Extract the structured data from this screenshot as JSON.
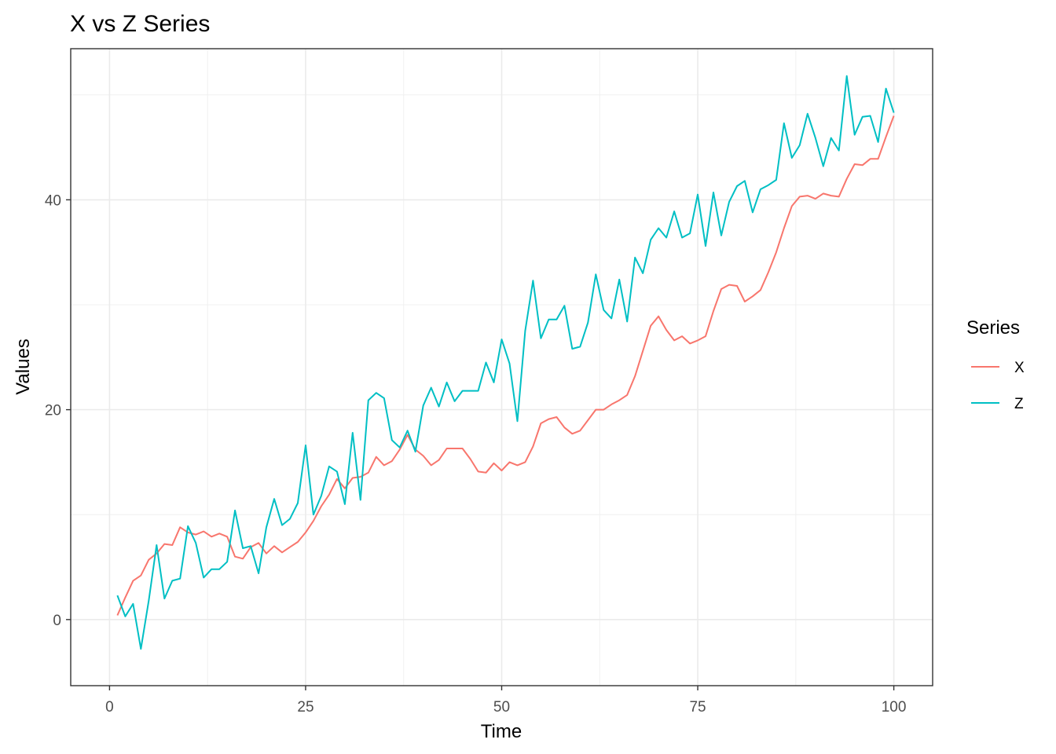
{
  "chart_data": {
    "type": "line",
    "title": "X vs Z Series",
    "xlabel": "Time",
    "ylabel": "Values",
    "xlim": [
      -4.95,
      104.95
    ],
    "ylim": [
      -6.3,
      54.4
    ],
    "x_ticks": [
      0,
      25,
      50,
      75,
      100
    ],
    "y_ticks": [
      0,
      20,
      40
    ],
    "x_tick_labels": [
      "0",
      "25",
      "50",
      "75",
      "100"
    ],
    "y_tick_labels": [
      "0",
      "20",
      "40"
    ],
    "grid": true,
    "legend_title": "Series",
    "legend_position": "right",
    "x": [
      1,
      2,
      3,
      4,
      5,
      6,
      7,
      8,
      9,
      10,
      11,
      12,
      13,
      14,
      15,
      16,
      17,
      18,
      19,
      20,
      21,
      22,
      23,
      24,
      25,
      26,
      27,
      28,
      29,
      30,
      31,
      32,
      33,
      34,
      35,
      36,
      37,
      38,
      39,
      40,
      41,
      42,
      43,
      44,
      45,
      46,
      47,
      48,
      49,
      50,
      51,
      52,
      53,
      54,
      55,
      56,
      57,
      58,
      59,
      60,
      61,
      62,
      63,
      64,
      65,
      66,
      67,
      68,
      69,
      70,
      71,
      72,
      73,
      74,
      75,
      76,
      77,
      78,
      79,
      80,
      81,
      82,
      83,
      84,
      85,
      86,
      87,
      88,
      89,
      90,
      91,
      92,
      93,
      94,
      95,
      96,
      97,
      98,
      99,
      100
    ],
    "series": [
      {
        "name": "X",
        "color": "#F8766D",
        "values": [
          0.4,
          2.1,
          3.7,
          4.2,
          5.7,
          6.3,
          7.2,
          7.1,
          8.8,
          8.3,
          8.1,
          8.4,
          7.9,
          8.2,
          7.9,
          6.0,
          5.8,
          6.9,
          7.3,
          6.3,
          7.0,
          6.4,
          6.9,
          7.4,
          8.3,
          9.4,
          10.8,
          11.9,
          13.4,
          12.5,
          13.5,
          13.6,
          14.0,
          15.5,
          14.7,
          15.1,
          16.2,
          17.6,
          16.2,
          15.6,
          14.7,
          15.2,
          16.3,
          16.3,
          16.3,
          15.3,
          14.1,
          14.0,
          14.9,
          14.2,
          15.0,
          14.7,
          15.0,
          16.5,
          18.7,
          19.1,
          19.3,
          18.3,
          17.7,
          18.0,
          19.0,
          20.0,
          20.0,
          20.5,
          20.9,
          21.4,
          23.2,
          25.6,
          28.0,
          28.9,
          27.6,
          26.6,
          27.0,
          26.3,
          26.6,
          27.0,
          29.4,
          31.5,
          31.9,
          31.8,
          30.3,
          30.8,
          31.4,
          33.1,
          35.0,
          37.3,
          39.4,
          40.3,
          40.4,
          40.1,
          40.6,
          40.4,
          40.3,
          42.0,
          43.4,
          43.3,
          43.9,
          43.9,
          46.0,
          48.0
        ]
      },
      {
        "name": "Z",
        "color": "#00BFC4",
        "values": [
          2.3,
          0.3,
          1.5,
          -2.8,
          1.8,
          7.1,
          2.0,
          3.7,
          3.9,
          8.9,
          7.3,
          4.0,
          4.8,
          4.8,
          5.5,
          10.4,
          6.8,
          7.0,
          4.4,
          8.8,
          11.5,
          9.0,
          9.6,
          11.1,
          16.6,
          10.0,
          11.8,
          14.6,
          14.1,
          11.0,
          17.8,
          11.4,
          20.9,
          21.6,
          21.1,
          17.1,
          16.4,
          18.0,
          16.0,
          20.4,
          22.1,
          20.3,
          22.6,
          20.8,
          21.8,
          21.8,
          21.8,
          24.5,
          22.6,
          26.7,
          24.4,
          18.9,
          27.5,
          32.3,
          26.8,
          28.6,
          28.6,
          29.9,
          25.8,
          26.0,
          28.3,
          32.9,
          29.5,
          28.7,
          32.4,
          28.4,
          34.5,
          33.0,
          36.2,
          37.3,
          36.4,
          38.9,
          36.4,
          36.8,
          40.5,
          35.6,
          40.7,
          36.6,
          39.8,
          41.3,
          41.8,
          38.8,
          41.0,
          41.4,
          41.9,
          47.3,
          44.0,
          45.2,
          48.2,
          45.9,
          43.2,
          45.9,
          44.7,
          51.8,
          46.2,
          47.9,
          48.0,
          45.5,
          50.6,
          48.3
        ]
      }
    ]
  }
}
